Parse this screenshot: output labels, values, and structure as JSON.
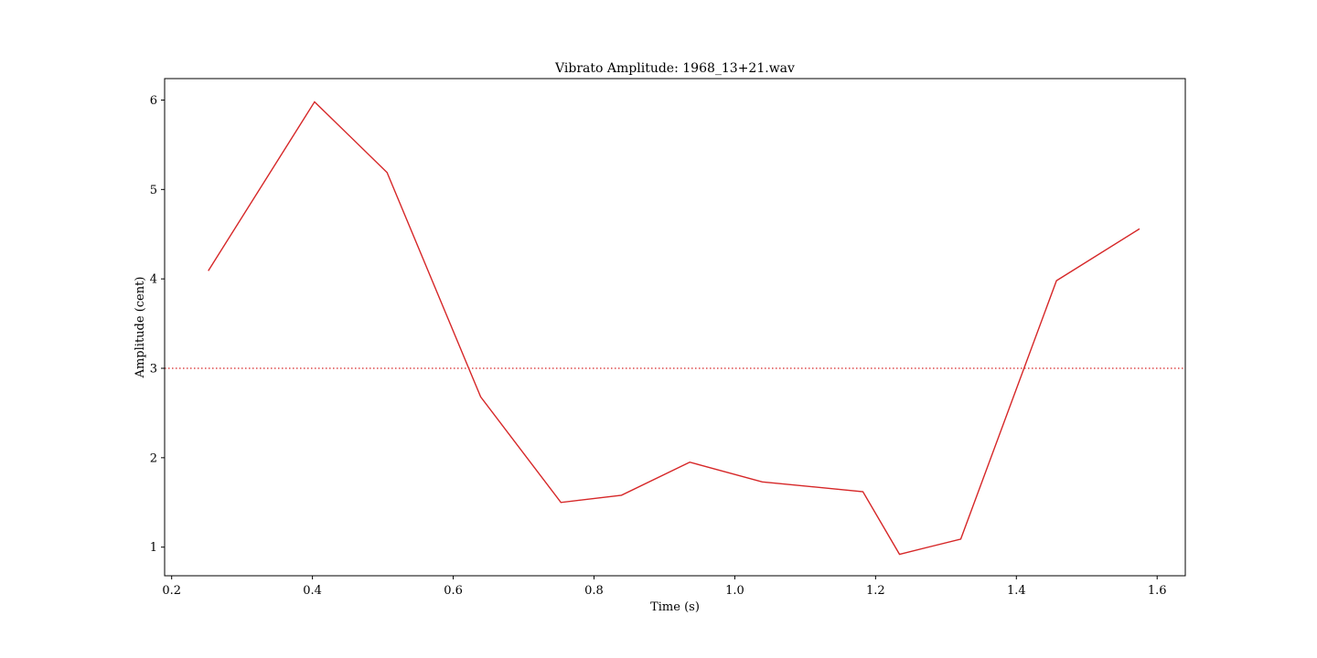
{
  "chart_data": {
    "type": "line",
    "title": "Vibrato Amplitude: 1968_13+21.wav",
    "xlabel": "Time (s)",
    "ylabel": "Amplitude (cent)",
    "xlim": [
      0.19,
      1.64
    ],
    "ylim": [
      0.68,
      6.24
    ],
    "x_ticks": [
      0.2,
      0.4,
      0.6,
      0.8,
      1.0,
      1.2,
      1.4,
      1.6
    ],
    "x_tick_labels": [
      "0.2",
      "0.4",
      "0.6",
      "0.8",
      "1.0",
      "1.2",
      "1.4",
      "1.6"
    ],
    "y_ticks": [
      1,
      2,
      3,
      4,
      5,
      6
    ],
    "y_tick_labels": [
      "1",
      "2",
      "3",
      "4",
      "5",
      "6"
    ],
    "grid": false,
    "series": [
      {
        "color": "#d62728",
        "style": "solid",
        "x": [
          0.252,
          0.403,
          0.506,
          0.639,
          0.753,
          0.839,
          0.936,
          1.039,
          1.182,
          1.234,
          1.321,
          1.457,
          1.575
        ],
        "y": [
          4.09,
          5.98,
          5.19,
          2.68,
          1.5,
          1.58,
          1.95,
          1.73,
          1.62,
          0.92,
          1.09,
          3.98,
          4.56
        ]
      }
    ],
    "reference_lines": [
      {
        "orientation": "horizontal",
        "y": 3.0,
        "color": "#d62728",
        "style": "dotted"
      }
    ]
  }
}
